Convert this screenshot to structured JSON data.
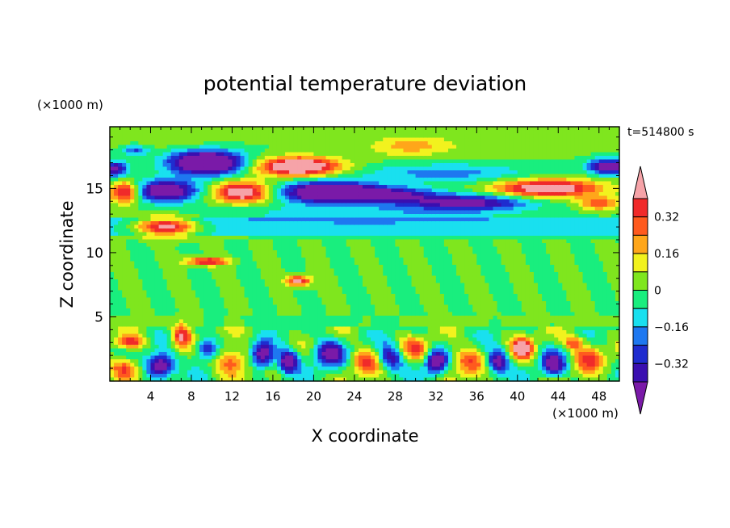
{
  "chart_data": {
    "type": "heatmap",
    "title": "potential temperature deviation",
    "xlabel": "X coordinate",
    "ylabel": "Z coordinate",
    "x_unit": "(×1000 m)",
    "y_unit": "(×1000 m)",
    "time_label": "t=514800 s",
    "xlim": [
      0,
      50
    ],
    "ylim": [
      0,
      19.8
    ],
    "x_ticks": [
      4,
      8,
      12,
      16,
      20,
      24,
      28,
      32,
      36,
      40,
      44,
      48
    ],
    "y_ticks": [
      5,
      10,
      15
    ],
    "colorbar": {
      "levels": [
        -0.4,
        -0.32,
        -0.24,
        -0.16,
        -0.08,
        0,
        0.08,
        0.16,
        0.24,
        0.32,
        0.4
      ],
      "tick_labels": [
        "0.32",
        "0.16",
        "0",
        "−0.16",
        "−0.32"
      ],
      "tick_values": [
        0.32,
        0.16,
        0,
        -0.16,
        -0.32
      ],
      "colors": [
        "#7a1aa8",
        "#3a0fb0",
        "#1f2ccf",
        "#1e78f0",
        "#19e0ef",
        "#19ee7e",
        "#7fe61e",
        "#f2f21e",
        "#ffa61a",
        "#ff5a1e",
        "#f02a2a",
        "#f6a3a8"
      ]
    },
    "features": [
      {
        "x": 9.5,
        "z": 17.0,
        "sx": 3.5,
        "sz": 0.9,
        "a": -0.75
      },
      {
        "x": 5.5,
        "z": 14.8,
        "sx": 3.0,
        "sz": 0.8,
        "a": -0.6
      },
      {
        "x": 21.5,
        "z": 14.7,
        "sx": 4.5,
        "sz": 0.8,
        "a": -0.7
      },
      {
        "x": 27.5,
        "z": 14.5,
        "sx": 4.5,
        "sz": 0.6,
        "a": -0.4
      },
      {
        "x": 35.0,
        "z": 13.9,
        "sx": 6.0,
        "sz": 0.6,
        "a": -0.45
      },
      {
        "x": 49.0,
        "z": 16.7,
        "sx": 2.0,
        "sz": 0.6,
        "a": -0.5
      },
      {
        "x": 0.5,
        "z": 16.5,
        "sx": 1.2,
        "sz": 0.6,
        "a": -0.45
      },
      {
        "x": 2.5,
        "z": 18.0,
        "sx": 1.2,
        "sz": 0.4,
        "a": -0.25
      },
      {
        "x": 33.0,
        "z": 16.2,
        "sx": 8.0,
        "sz": 0.7,
        "a": -0.2
      },
      {
        "x": 25.0,
        "z": 13.0,
        "sx": 14.0,
        "sz": 0.7,
        "a": -0.14
      },
      {
        "x": 18.5,
        "z": 16.7,
        "sx": 4.0,
        "sz": 0.7,
        "a": 0.65
      },
      {
        "x": 13.0,
        "z": 14.7,
        "sx": 2.8,
        "sz": 0.8,
        "a": 0.55
      },
      {
        "x": 5.5,
        "z": 12.0,
        "sx": 3.0,
        "sz": 0.7,
        "a": 0.55
      },
      {
        "x": 1.5,
        "z": 14.7,
        "sx": 1.5,
        "sz": 0.8,
        "a": 0.5
      },
      {
        "x": 43.0,
        "z": 15.0,
        "sx": 5.0,
        "sz": 0.7,
        "a": 0.55
      },
      {
        "x": 48.0,
        "z": 13.8,
        "sx": 2.0,
        "sz": 0.5,
        "a": 0.3
      },
      {
        "x": 29.5,
        "z": 18.3,
        "sx": 4.0,
        "sz": 0.8,
        "a": 0.2
      },
      {
        "x": 41.0,
        "z": 18.4,
        "sx": 6.0,
        "sz": 0.8,
        "a": 0.08
      },
      {
        "x": 6.0,
        "z": 19.0,
        "sx": 6.0,
        "sz": 0.8,
        "a": 0.08
      },
      {
        "x": 9.5,
        "z": 9.3,
        "sx": 2.0,
        "sz": 0.3,
        "a": 0.45
      },
      {
        "x": 18.5,
        "z": 7.8,
        "sx": 1.2,
        "sz": 0.4,
        "a": 0.45
      },
      {
        "x": 7.0,
        "z": 3.5,
        "sx": 0.9,
        "sz": 0.9,
        "a": 0.45
      },
      {
        "x": 5.0,
        "z": 1.2,
        "sx": 1.4,
        "sz": 0.9,
        "a": -0.6
      },
      {
        "x": 12.0,
        "z": 1.5,
        "sx": 1.5,
        "sz": 1.0,
        "a": 0.35
      },
      {
        "x": 15.0,
        "z": 2.0,
        "sx": 1.0,
        "sz": 1.0,
        "a": -0.55
      },
      {
        "x": 17.5,
        "z": 1.5,
        "sx": 1.0,
        "sz": 0.9,
        "a": -0.55
      },
      {
        "x": 21.5,
        "z": 2.2,
        "sx": 1.5,
        "sz": 1.0,
        "a": -0.45
      },
      {
        "x": 25.0,
        "z": 1.5,
        "sx": 1.5,
        "sz": 1.0,
        "a": 0.3
      },
      {
        "x": 27.5,
        "z": 1.8,
        "sx": 1.2,
        "sz": 1.0,
        "a": -0.4
      },
      {
        "x": 30.0,
        "z": 2.5,
        "sx": 1.5,
        "sz": 0.8,
        "a": 0.25
      },
      {
        "x": 32.0,
        "z": 1.5,
        "sx": 1.0,
        "sz": 0.9,
        "a": -0.55
      },
      {
        "x": 35.0,
        "z": 1.5,
        "sx": 1.5,
        "sz": 1.0,
        "a": 0.3
      },
      {
        "x": 38.0,
        "z": 1.5,
        "sx": 1.0,
        "sz": 0.9,
        "a": -0.5
      },
      {
        "x": 40.5,
        "z": 2.5,
        "sx": 1.0,
        "sz": 0.8,
        "a": 0.5
      },
      {
        "x": 43.5,
        "z": 1.3,
        "sx": 1.2,
        "sz": 0.9,
        "a": -0.45
      },
      {
        "x": 47.0,
        "z": 1.8,
        "sx": 1.5,
        "sz": 1.0,
        "a": 0.3
      },
      {
        "x": 1.5,
        "z": 1.0,
        "sx": 1.5,
        "sz": 0.8,
        "a": 0.35
      },
      {
        "x": 2.0,
        "z": 3.0,
        "sx": 1.2,
        "sz": 0.5,
        "a": 0.4
      },
      {
        "x": 9.5,
        "z": 2.5,
        "sx": 1.0,
        "sz": 0.8,
        "a": -0.4
      },
      {
        "x": 45.5,
        "z": 3.0,
        "sx": 1.0,
        "sz": 0.5,
        "a": 0.3
      }
    ]
  }
}
